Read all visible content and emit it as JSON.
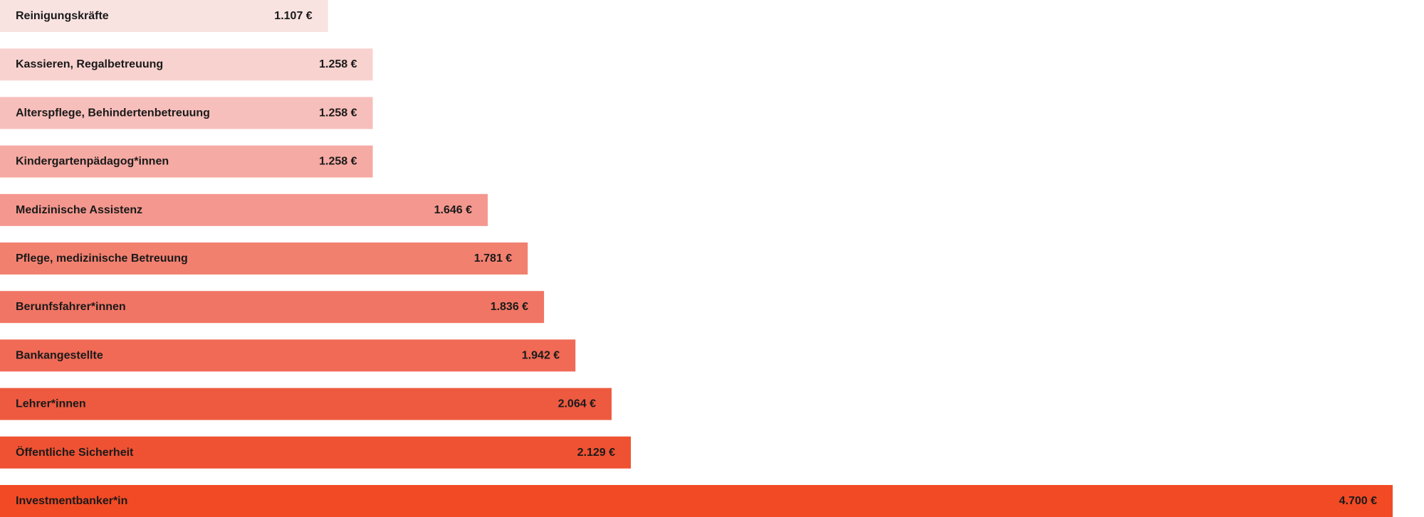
{
  "chart_data": {
    "type": "bar",
    "orientation": "horizontal",
    "categories": [
      "Reinigungskräfte",
      "Kassieren, Regalbetreuung",
      "Alterspflege, Behindertenbetreuung",
      "Kindergartenpädagog*innen",
      "Medizinische Assistenz",
      "Pflege, medizinische Betreuung",
      "Berunfsfahrer*innen",
      "Bankangestellte",
      "Lehrer*innen",
      "Öffentliche Sicherheit",
      "Investmentbanker*in"
    ],
    "values": [
      1107,
      1258,
      1258,
      1258,
      1646,
      1781,
      1836,
      1942,
      2064,
      2129,
      4700
    ],
    "value_labels": [
      "1.107 €",
      "1.258 €",
      "1.258 €",
      "1.258 €",
      "1.646 €",
      "1.781 €",
      "1.836 €",
      "1.942 €",
      "2.064 €",
      "2.129 €",
      "4.700 €"
    ],
    "colors": [
      "#f9e3e1",
      "#f8d2cf",
      "#f7bfbb",
      "#f5aaa3",
      "#f4978e",
      "#f2806f",
      "#f17564",
      "#f06a56",
      "#ee5a40",
      "#ef5233",
      "#f24a24"
    ],
    "title": "",
    "xlabel": "",
    "ylabel": "",
    "grid": false,
    "legend": "none"
  }
}
